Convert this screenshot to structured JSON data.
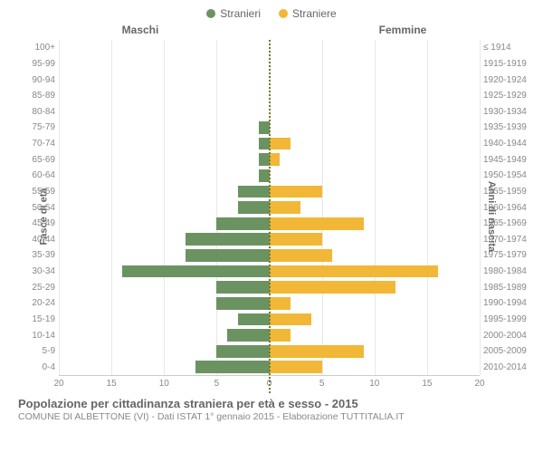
{
  "chart": {
    "type": "population-pyramid",
    "legend": {
      "male": {
        "label": "Stranieri",
        "color": "#6b9362"
      },
      "female": {
        "label": "Straniere",
        "color": "#f2b736"
      }
    },
    "header_male": "Maschi",
    "header_female": "Femmine",
    "y_left_title": "Fasce di età",
    "y_right_title": "Anni di nascita",
    "x_max": 20,
    "x_ticks": [
      20,
      15,
      10,
      5,
      0,
      5,
      10,
      15,
      20
    ],
    "rows": [
      {
        "age": "100+",
        "birth": "≤ 1914",
        "m": 0,
        "f": 0
      },
      {
        "age": "95-99",
        "birth": "1915-1919",
        "m": 0,
        "f": 0
      },
      {
        "age": "90-94",
        "birth": "1920-1924",
        "m": 0,
        "f": 0
      },
      {
        "age": "85-89",
        "birth": "1925-1929",
        "m": 0,
        "f": 0
      },
      {
        "age": "80-84",
        "birth": "1930-1934",
        "m": 0,
        "f": 0
      },
      {
        "age": "75-79",
        "birth": "1935-1939",
        "m": 1,
        "f": 0
      },
      {
        "age": "70-74",
        "birth": "1940-1944",
        "m": 1,
        "f": 2
      },
      {
        "age": "65-69",
        "birth": "1945-1949",
        "m": 1,
        "f": 1
      },
      {
        "age": "60-64",
        "birth": "1950-1954",
        "m": 1,
        "f": 0
      },
      {
        "age": "55-59",
        "birth": "1955-1959",
        "m": 3,
        "f": 5
      },
      {
        "age": "50-54",
        "birth": "1960-1964",
        "m": 3,
        "f": 3
      },
      {
        "age": "45-49",
        "birth": "1965-1969",
        "m": 5,
        "f": 9
      },
      {
        "age": "40-44",
        "birth": "1970-1974",
        "m": 8,
        "f": 5
      },
      {
        "age": "35-39",
        "birth": "1975-1979",
        "m": 8,
        "f": 6
      },
      {
        "age": "30-34",
        "birth": "1980-1984",
        "m": 14,
        "f": 16
      },
      {
        "age": "25-29",
        "birth": "1985-1989",
        "m": 5,
        "f": 12
      },
      {
        "age": "20-24",
        "birth": "1990-1994",
        "m": 5,
        "f": 2
      },
      {
        "age": "15-19",
        "birth": "1995-1999",
        "m": 3,
        "f": 4
      },
      {
        "age": "10-14",
        "birth": "2000-2004",
        "m": 4,
        "f": 2
      },
      {
        "age": "5-9",
        "birth": "2005-2009",
        "m": 5,
        "f": 9
      },
      {
        "age": "0-4",
        "birth": "2010-2014",
        "m": 7,
        "f": 5
      }
    ],
    "grid_positions_pct": [
      0,
      12.5,
      25,
      37.5,
      50,
      62.5,
      75,
      87.5,
      100
    ],
    "title": "Popolazione per cittadinanza straniera per età e sesso - 2015",
    "subtitle": "COMUNE DI ALBETTONE (VI) - Dati ISTAT 1° gennaio 2015 - Elaborazione TUTTITALIA.IT",
    "background_color": "#ffffff",
    "grid_color": "#e8e8e8",
    "axis_text_color": "#888888",
    "label_fontsize": 10,
    "title_fontsize": 13
  }
}
